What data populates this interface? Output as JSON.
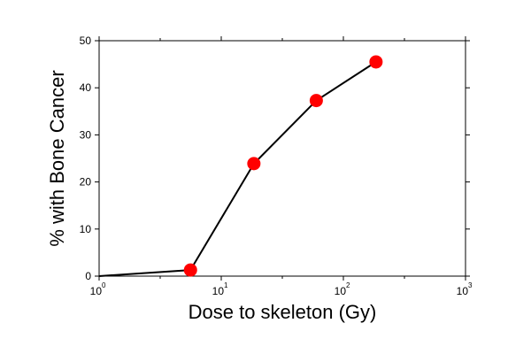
{
  "chart_data": {
    "type": "line",
    "xlabel": "Dose to skeleton (Gy)",
    "ylabel": "% with Bone Cancer",
    "x_scale": "log",
    "xlim": [
      1,
      1000
    ],
    "ylim": [
      0,
      50
    ],
    "x_ticks": [
      {
        "value": 1,
        "base": "10",
        "exp": "0"
      },
      {
        "value": 10,
        "base": "10",
        "exp": "1"
      },
      {
        "value": 100,
        "base": "10",
        "exp": "2"
      },
      {
        "value": 1000,
        "base": "10",
        "exp": "3"
      }
    ],
    "y_ticks": [
      "0",
      "10",
      "20",
      "30",
      "40",
      "50"
    ],
    "grid": false,
    "series": [
      {
        "line_points": [
          {
            "x": 1,
            "y": 0
          },
          {
            "x": 5.6,
            "y": 1.3
          },
          {
            "x": 18.5,
            "y": 23.9
          },
          {
            "x": 60,
            "y": 37.3
          },
          {
            "x": 185,
            "y": 45.5
          }
        ],
        "markers": [
          {
            "x": 5.6,
            "y": 1.3
          },
          {
            "x": 18.5,
            "y": 23.9
          },
          {
            "x": 60,
            "y": 37.3
          },
          {
            "x": 185,
            "y": 45.5
          }
        ],
        "line_color": "#000000",
        "marker_color": "#ff0000"
      }
    ]
  }
}
